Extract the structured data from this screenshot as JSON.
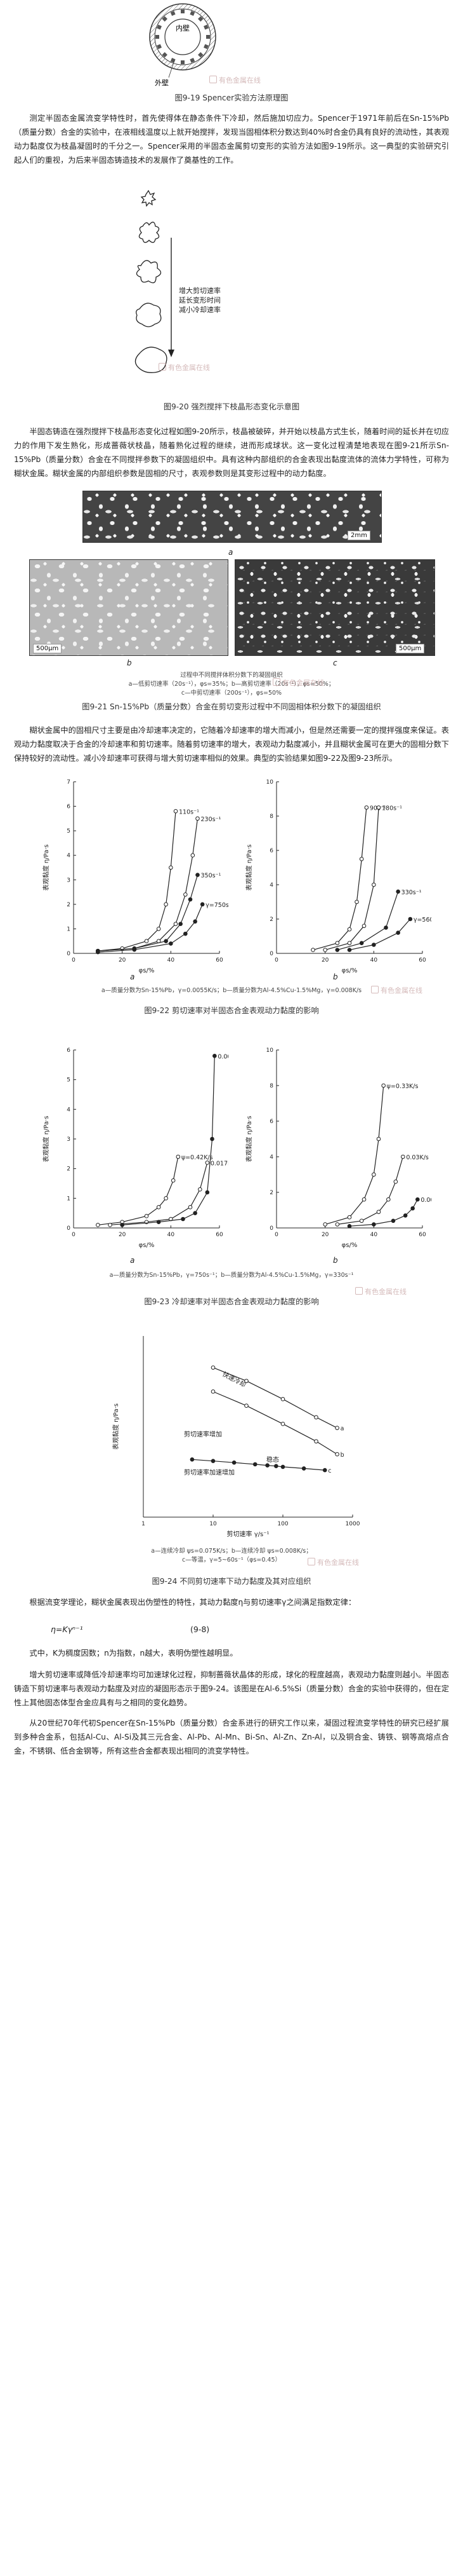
{
  "fig919": {
    "inner_label": "内壁",
    "outer_label": "外壁",
    "caption": "图9-19 Spencer实验方法原理图"
  },
  "paragraphs": {
    "p1": "测定半固态金属流变学特性时，首先使得体在静态条件下冷却，然后施加切应力。Spencer于1971年前后在Sn-15%Pb（质量分数）合金的实验中，在液相线温度以上就开始搅拌，发现当固相体积分数达到40%时合金仍具有良好的流动性，其表观动力黏度仅为枝晶凝固时的千分之一。Spencer采用的半固态金属剪切变形的实验方法如图9-19所示。这一典型的实验研究引起人们的重视，为后来半固态铸造技术的发展作了奠基性的工作。",
    "p2": "半固态铸造在强烈搅拌下枝晶形态变化过程如图9-20所示，枝晶被破碎，并开始以枝晶方式生长，随着时间的延长并在切应力的作用下发生熟化，形成蔷薇状枝晶，随着熟化过程的继续，进而形成球状。这一变化过程清楚地表现在图9-21所示Sn-15%Pb（质量分数）合金在不同搅拌参数下的凝固组织中。具有这种内部组织的合金表现出黏度流体的流体力学特性，可称为糊状金属。糊状金属的内部组织参数是固相的尺寸，表观参数则是其变形过程中的动力黏度。",
    "p3": "糊状金属中的固相尺寸主要是由冷却速率决定的，它随着冷却速率的增大而减小，但是然还需要一定的搅拌强度来保证。表观动力黏度取决于合金的冷却速率和剪切速率。随着剪切速率的增大，表观动力黏度减小，并且糊状金属可在更大的固相分数下保持较好的流动性。减小冷却速率可获得与增大剪切速率相似的效果。典型的实验结果如图9-22及图9-23所示。",
    "p4": "根据流变学理论，糊状金属表现出伪塑性的特性，其动力黏度η与剪切速率γ之间满足指数定律：",
    "formula": "η=Kγⁿ⁻¹",
    "formula_no": "(9-8)",
    "p5": "式中，K为稠度因数；n为指数，n越大，表明伪塑性越明显。",
    "p6": "增大剪切速率或降低冷却速率均可加速球化过程，抑制蔷薇状晶体的形成，球化的程度越高，表观动力黏度则越小。半固态铸造下剪切速率与表观动力黏度及对应的凝固形态示于图9-24。该图是在Al-6.5%Si（质量分数）合金的实验中获得的，但在定性上其他固态体型合金应具有与之相同的变化趋势。",
    "p7": "从20世纪70年代初Spencer在Sn-15%Pb（质量分数）合金系进行的研究工作以来，凝固过程流变学特性的研究已经扩展到多种合金系，包括Al-Cu、Al-Si及其三元合金、Al-Pb、Al-Mn、Bi-Sn、Al-Zn、Zn-Al，以及铜合金、铸铁、钢等高熔点合金，不锈钢、低合金钢等，所有这些合金都表现出相同的流变学特性。"
  },
  "fig920": {
    "annotations": [
      "增大剪切速率",
      "延长变形时间",
      "减小冷却速率"
    ],
    "caption": "图9-20 强烈搅拌下枝晶形态变化示意图"
  },
  "fig921": {
    "scale_top": "2mm",
    "scale_bl": "500μm",
    "scale_br": "500μm",
    "panel_a": "a",
    "panel_b": "b",
    "panel_c": "c",
    "legend_1": "过程中不同搅拌体积分数下的凝固组织",
    "legend_2": "a—低剪切速率（20s⁻¹），φs=35%；b—高剪切速率（20s⁻¹），φs=50%；",
    "legend_3": "c—中剪切速率（200s⁻¹），φs=50%",
    "caption": "图9-21 Sn-15%Pb（质量分数）合金在剪切变形过程中不同固相体积分数下的凝固组织"
  },
  "fig922": {
    "caption": "图9-22 剪切速率对半固态合金表观动力黏度的影响",
    "legend": "a—质量分数为Sn-15%Pb，γ=0.0055K/s；b—质量分数为Al-4.5%Cu-1.5%Mg，γ=0.008K/s",
    "panel_a": "a",
    "panel_b": "b"
  },
  "fig923": {
    "caption": "图9-23 冷却速率对半固态合金表观动力黏度的影响",
    "legend": "a—质量分数为Sn-15%Pb，γ=750s⁻¹；b—质量分数为Al-4.5%Cu-1.5%Mg，γ=330s⁻¹",
    "panel_a": "a",
    "panel_b": "b"
  },
  "fig924": {
    "labels": [
      "快速冷却",
      "剪切速率增加",
      "稳态",
      "剪切速率加速增加"
    ],
    "legend_1": "a—连续冷却 ψs=0.075K/s；b—连续冷却 ψs=0.008K/s；",
    "legend_2": "c—等温，γ=5~60s⁻¹（φs=0.45）",
    "caption": "图9-24 不同剪切速率下动力黏度及其对应组织"
  },
  "watermark": "有色金属在线",
  "chart_data": [
    {
      "type": "line",
      "xlabel": "φs/%",
      "ylabel": "表观黏度 η/Pa·s",
      "xlim": [
        0,
        60
      ],
      "ylim": [
        0,
        7
      ],
      "x_ticks": [
        0,
        20,
        40,
        60
      ],
      "y_ticks": [
        0,
        1,
        2,
        3,
        4,
        5,
        6,
        7
      ],
      "series": [
        {
          "name": "110s⁻¹",
          "x": [
            10,
            20,
            30,
            35,
            38,
            40,
            42
          ],
          "y": [
            0.1,
            0.2,
            0.5,
            1.0,
            2.0,
            3.5,
            5.8
          ]
        },
        {
          "name": "230s⁻¹",
          "x": [
            10,
            25,
            35,
            42,
            46,
            49,
            51
          ],
          "y": [
            0.1,
            0.2,
            0.5,
            1.2,
            2.4,
            4.0,
            5.5
          ]
        },
        {
          "name": "350s⁻¹",
          "x": [
            10,
            25,
            38,
            44,
            48,
            51
          ],
          "y": [
            0.1,
            0.2,
            0.5,
            1.2,
            2.2,
            3.2
          ]
        },
        {
          "name": "γ=750s⁻¹",
          "x": [
            10,
            25,
            40,
            46,
            50,
            53
          ],
          "y": [
            0.05,
            0.15,
            0.4,
            0.8,
            1.3,
            2.0
          ]
        }
      ]
    },
    {
      "type": "line",
      "xlabel": "φs/%",
      "ylabel": "表观黏度 η/Pa·s",
      "xlim": [
        0,
        60
      ],
      "ylim": [
        0,
        10
      ],
      "x_ticks": [
        0,
        20,
        40,
        60
      ],
      "y_ticks": [
        0,
        2,
        4,
        6,
        8,
        10
      ],
      "series": [
        {
          "name": "90s⁻¹",
          "x": [
            15,
            25,
            30,
            33,
            35,
            37
          ],
          "y": [
            0.2,
            0.6,
            1.4,
            3.0,
            5.5,
            8.5
          ]
        },
        {
          "name": "180s⁻¹",
          "x": [
            20,
            30,
            36,
            40,
            42
          ],
          "y": [
            0.2,
            0.6,
            1.6,
            4.0,
            8.5
          ]
        },
        {
          "name": "330s⁻¹",
          "x": [
            25,
            35,
            45,
            50
          ],
          "y": [
            0.2,
            0.6,
            1.5,
            3.6
          ]
        },
        {
          "name": "γ=560s⁻¹",
          "x": [
            30,
            40,
            50,
            55
          ],
          "y": [
            0.2,
            0.5,
            1.2,
            2.0
          ]
        }
      ]
    },
    {
      "type": "line",
      "xlabel": "φs/%",
      "ylabel": "表观黏度 η/Pa·s",
      "xlim": [
        0,
        60
      ],
      "ylim": [
        0,
        6
      ],
      "x_ticks": [
        0,
        20,
        40,
        60
      ],
      "y_ticks": [
        0,
        1,
        2,
        3,
        4,
        5,
        6
      ],
      "series": [
        {
          "name": "ψ=0.42K/s",
          "x": [
            10,
            20,
            30,
            35,
            38,
            41,
            43
          ],
          "y": [
            0.1,
            0.2,
            0.4,
            0.7,
            1.0,
            1.6,
            2.4
          ]
        },
        {
          "name": "0.017K/s",
          "x": [
            15,
            30,
            40,
            48,
            52,
            55
          ],
          "y": [
            0.1,
            0.2,
            0.3,
            0.7,
            1.3,
            2.2
          ]
        },
        {
          "name": "0.0055K/s",
          "x": [
            20,
            35,
            45,
            50,
            55,
            57,
            58
          ],
          "y": [
            0.1,
            0.2,
            0.3,
            0.5,
            1.2,
            3.0,
            5.8
          ]
        }
      ]
    },
    {
      "type": "line",
      "xlabel": "φs/%",
      "ylabel": "表观黏度 η/Pa·s",
      "xlim": [
        0,
        60
      ],
      "ylim": [
        0,
        10
      ],
      "x_ticks": [
        0,
        20,
        40,
        60
      ],
      "y_ticks": [
        0,
        2,
        4,
        6,
        8,
        10
      ],
      "series": [
        {
          "name": "ψ=0.33K/s",
          "x": [
            20,
            30,
            36,
            40,
            42,
            44
          ],
          "y": [
            0.2,
            0.6,
            1.6,
            3.0,
            5.0,
            8.0
          ]
        },
        {
          "name": "0.03K/s",
          "x": [
            25,
            35,
            42,
            46,
            49,
            52
          ],
          "y": [
            0.2,
            0.4,
            0.9,
            1.6,
            2.6,
            4.0
          ]
        },
        {
          "name": "0.008K/s",
          "x": [
            30,
            40,
            48,
            53,
            56,
            58
          ],
          "y": [
            0.1,
            0.2,
            0.4,
            0.7,
            1.1,
            1.6
          ]
        }
      ]
    },
    {
      "type": "line",
      "xlabel": "剪切速率 γ/s⁻¹",
      "ylabel": "表观黏度 η/Pa·s",
      "xscale": "log",
      "xlim": [
        1,
        1000
      ],
      "ylim": [
        0.1,
        100
      ],
      "x_ticks": [
        1,
        10,
        100,
        1000
      ],
      "series": [
        {
          "name": "a",
          "x": [
            10,
            30,
            100,
            300,
            600
          ],
          "y": [
            30,
            18,
            9,
            4.5,
            3.0
          ]
        },
        {
          "name": "b",
          "x": [
            10,
            30,
            100,
            300,
            600
          ],
          "y": [
            12,
            7,
            3.5,
            1.8,
            1.1
          ]
        },
        {
          "name": "c",
          "x": [
            5,
            10,
            20,
            40,
            60,
            80,
            100,
            200,
            400
          ],
          "y": [
            0.9,
            0.85,
            0.8,
            0.75,
            0.72,
            0.7,
            0.68,
            0.64,
            0.6
          ]
        }
      ]
    }
  ]
}
